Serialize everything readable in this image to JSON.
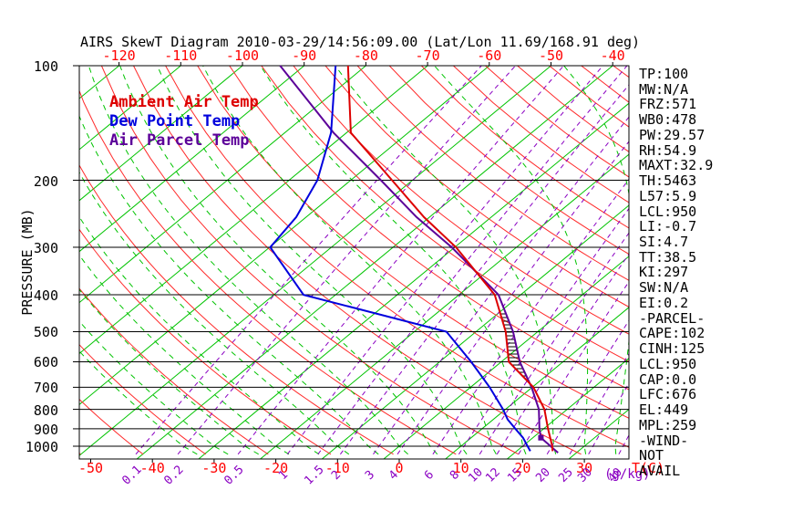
{
  "title": "AIRS SkewT Diagram 2010-03-29/14:56:09.00 (Lat/Lon 11.69/168.91 deg)",
  "colors": {
    "ambient": "#dd0000",
    "dewpoint": "#0000dd",
    "parcel": "#5c0099",
    "isotherm": "#00c300",
    "moist_adiabat": "#00c300",
    "dry_adiabat": "#ff2a2a",
    "mixing_ratio": "#8a00c2",
    "axis": "#000000",
    "tick_label_temp": "#ff0000"
  },
  "legend": [
    {
      "label": "Ambient Air Temp",
      "color": "#dd0000"
    },
    {
      "label": "Dew Point Temp",
      "color": "#0000dd"
    },
    {
      "label": "Air Parcel Temp",
      "color": "#5c0099"
    }
  ],
  "axes": {
    "pressure_axis_label": "PRESSURE (MB)",
    "pressure_ticks": [
      100,
      200,
      300,
      400,
      500,
      600,
      700,
      800,
      900,
      1000
    ],
    "top_temp_ticks": [
      -120,
      -110,
      -100,
      -90,
      -80,
      -70,
      -60,
      -50,
      -40
    ],
    "bottom_temp_ticks": [
      -50,
      -40,
      -30,
      -20,
      -10,
      0,
      10,
      20,
      30
    ],
    "temp_unit_label": "T(C)",
    "mixing_ratio_ticks": [
      "0.1",
      "0.2",
      "0.5",
      "1",
      "1.5",
      "2",
      "3",
      "4",
      "6",
      "8",
      "10",
      "12",
      "15",
      "20",
      "25",
      "30",
      "40"
    ],
    "mixing_unit_label": "(g/kg)"
  },
  "stats_panel": [
    "TP:100",
    "MW:N/A",
    "FRZ:571",
    "WB0:478",
    "PW:29.57",
    "RH:54.9",
    "MAXT:32.9",
    "TH:5463",
    "L57:5.9",
    "LCL:950",
    "LI:-0.7",
    "SI:4.7",
    "TT:38.5",
    "KI:297",
    "SW:N/A",
    "EI:0.2",
    "-PARCEL-",
    "CAPE:102",
    "CINH:125",
    "LCL:950",
    "CAP:0.0",
    "LFC:676",
    "EL:449",
    "MPL:259",
    "-WIND-",
    "NOT",
    "AVAIL"
  ],
  "chart_data": {
    "type": "line",
    "variant": "skew-t log-p sounding",
    "x_axis": {
      "label": "Temperature (C)",
      "bottom_range": [
        -52,
        37
      ],
      "skew": "isotherms slope up-right"
    },
    "y_axis": {
      "label": "PRESSURE (MB)",
      "scale": "log",
      "range": [
        100,
        1050
      ],
      "inverted": true
    },
    "grid": {
      "isotherm_step_c": 10,
      "dry_adiabat_theta_k": {
        "min": 220,
        "max": 460,
        "step": 10
      },
      "moist_adiabat_anchor_c": {
        "min": -35,
        "max": 40,
        "step": 5
      },
      "mixing_ratio_lines_gkg": [
        0.1,
        0.2,
        0.5,
        1,
        1.5,
        2,
        3,
        4,
        6,
        8,
        10,
        12,
        15,
        20,
        25,
        30,
        40
      ]
    },
    "series": [
      {
        "name": "Ambient Air Temp",
        "color": "#dd0000",
        "points": [
          [
            100,
            -82.9
          ],
          [
            150,
            -69.3
          ],
          [
            200,
            -53.3
          ],
          [
            250,
            -40.9
          ],
          [
            300,
            -29.8
          ],
          [
            400,
            -14.2
          ],
          [
            500,
            -5.2
          ],
          [
            600,
            1.2
          ],
          [
            700,
            10.2
          ],
          [
            800,
            16.3
          ],
          [
            900,
            20.7
          ],
          [
            1000,
            24.8
          ],
          [
            1030,
            25.8
          ]
        ]
      },
      {
        "name": "Dew Point Temp",
        "color": "#0000dd",
        "points": [
          [
            100,
            -84.9
          ],
          [
            150,
            -72.5
          ],
          [
            200,
            -65.4
          ],
          [
            250,
            -61.6
          ],
          [
            300,
            -59.9
          ],
          [
            400,
            -45.2
          ],
          [
            500,
            -14.8
          ],
          [
            600,
            -4.9
          ],
          [
            700,
            3.1
          ],
          [
            800,
            9.6
          ],
          [
            850,
            12.3
          ],
          [
            900,
            15.4
          ],
          [
            950,
            18.4
          ],
          [
            1000,
            20.8
          ],
          [
            1030,
            22.2
          ]
        ]
      },
      {
        "name": "Air Parcel Temp",
        "color": "#5c0099",
        "points": [
          [
            100,
            -93.9
          ],
          [
            150,
            -72.1
          ],
          [
            200,
            -55.1
          ],
          [
            250,
            -42.1
          ],
          [
            300,
            -30.5
          ],
          [
            400,
            -13.6
          ],
          [
            500,
            -4.0
          ],
          [
            600,
            3.0
          ],
          [
            700,
            9.9
          ],
          [
            800,
            15.4
          ],
          [
            900,
            19.3
          ],
          [
            950,
            21.3
          ],
          [
            1040,
            27.0
          ]
        ]
      }
    ],
    "markers": [
      {
        "name": "lcl-marker",
        "shape": "square",
        "color": "#5c0099",
        "pressure_mb": 950,
        "temp_c": 21.3
      }
    ],
    "cape_hatch_region": {
      "between": [
        "Air Parcel Temp",
        "Ambient Air Temp"
      ],
      "upper_p_mb": 449,
      "lower_p_mb": 676
    }
  }
}
